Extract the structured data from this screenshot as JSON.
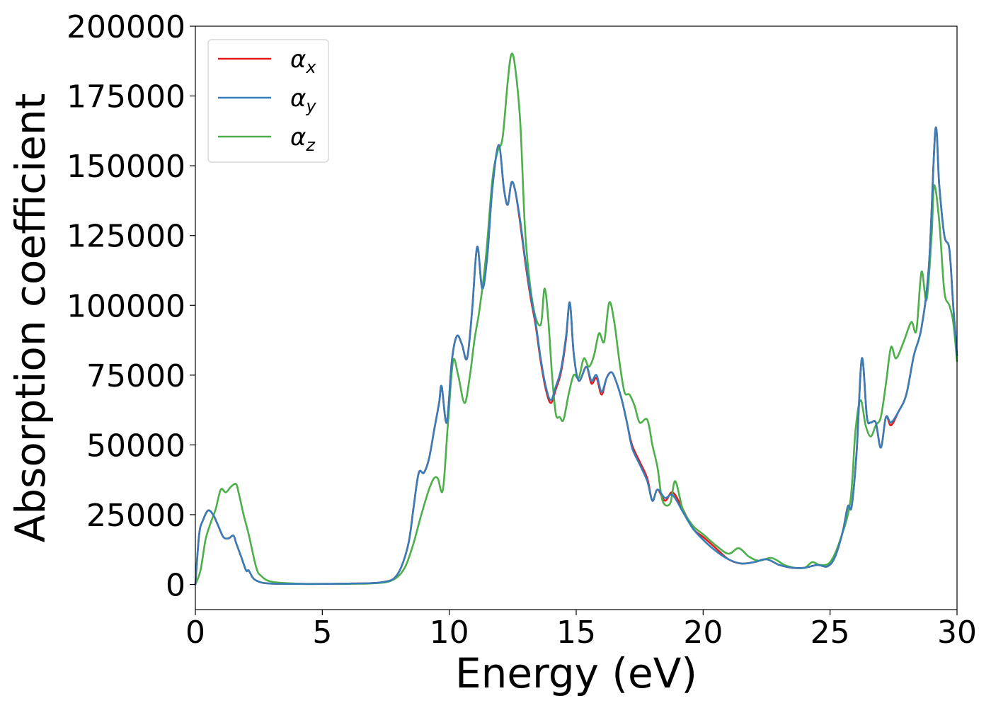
{
  "chart_data": {
    "type": "line",
    "title": "",
    "xlabel": "Energy (eV)",
    "ylabel": "Absorption coefficient",
    "xlim": [
      0,
      30
    ],
    "ylim": [
      -9000,
      200000
    ],
    "x_ticks": [
      0,
      5,
      10,
      15,
      20,
      25,
      30
    ],
    "y_ticks": [
      0,
      25000,
      50000,
      75000,
      100000,
      125000,
      150000,
      175000,
      200000
    ],
    "grid": false,
    "legend_position": "upper-left",
    "series": [
      {
        "name": "α",
        "subscript": "x",
        "color": "#e41a1c",
        "x": [
          0,
          0.15,
          0.3,
          0.5,
          0.7,
          0.9,
          1.1,
          1.3,
          1.5,
          1.6,
          1.8,
          2.0,
          2.1,
          2.3,
          2.6,
          3.0,
          4.0,
          5.0,
          6.0,
          7.0,
          7.4,
          7.8,
          8.1,
          8.4,
          8.6,
          8.8,
          9.0,
          9.2,
          9.4,
          9.6,
          9.7,
          9.9,
          10.1,
          10.3,
          10.5,
          10.7,
          10.9,
          11.1,
          11.3,
          11.5,
          11.7,
          11.95,
          12.15,
          12.3,
          12.45,
          12.6,
          12.8,
          13.0,
          13.2,
          13.4,
          13.6,
          13.8,
          14.0,
          14.2,
          14.4,
          14.6,
          14.75,
          14.9,
          15.1,
          15.4,
          15.6,
          15.8,
          16.0,
          16.2,
          16.4,
          16.6,
          16.8,
          17.0,
          17.2,
          17.5,
          17.8,
          18.0,
          18.2,
          18.5,
          18.8,
          19.2,
          19.6,
          20.0,
          20.5,
          21.0,
          21.5,
          22.0,
          22.5,
          23.0,
          23.5,
          24.0,
          24.5,
          24.9,
          25.2,
          25.5,
          25.7,
          25.85,
          26.05,
          26.25,
          26.45,
          26.6,
          26.8,
          27.0,
          27.2,
          27.4,
          27.7,
          28.0,
          28.3,
          28.6,
          28.9,
          29.15,
          29.3,
          29.5,
          29.7,
          29.85,
          30.0
        ],
        "y": [
          0,
          18000,
          23000,
          26500,
          25000,
          21000,
          17000,
          16500,
          17500,
          15000,
          10000,
          5000,
          5000,
          2000,
          700,
          300,
          200,
          200,
          300,
          500,
          900,
          2000,
          6000,
          15000,
          28000,
          40000,
          40000,
          45000,
          55000,
          65000,
          71000,
          58000,
          80000,
          89000,
          86000,
          81000,
          98000,
          121000,
          106000,
          118000,
          142000,
          157000,
          142000,
          136000,
          144000,
          141000,
          129000,
          115000,
          103000,
          93000,
          80000,
          70000,
          65000,
          70000,
          76000,
          88000,
          101000,
          83000,
          73000,
          78000,
          72000,
          74000,
          68000,
          74000,
          76000,
          72000,
          66000,
          58000,
          50000,
          44000,
          38000,
          30000,
          34000,
          30000,
          33000,
          27000,
          20000,
          17000,
          13000,
          9000,
          7500,
          8000,
          9000,
          7000,
          6000,
          6000,
          7000,
          6500,
          10000,
          19000,
          28000,
          28000,
          48000,
          81000,
          60000,
          58000,
          58000,
          49000,
          60000,
          57000,
          62000,
          68000,
          82000,
          92000,
          115000,
          163000,
          143000,
          125000,
          120000,
          100000,
          82000
        ]
      },
      {
        "name": "α",
        "subscript": "y",
        "color": "#377eb8",
        "x": [
          0,
          0.15,
          0.3,
          0.5,
          0.7,
          0.9,
          1.1,
          1.3,
          1.5,
          1.6,
          1.8,
          2.0,
          2.1,
          2.3,
          2.6,
          3.0,
          4.0,
          5.0,
          6.0,
          7.0,
          7.4,
          7.8,
          8.1,
          8.4,
          8.6,
          8.8,
          9.0,
          9.2,
          9.4,
          9.6,
          9.7,
          9.9,
          10.1,
          10.3,
          10.5,
          10.7,
          10.9,
          11.1,
          11.3,
          11.5,
          11.7,
          11.95,
          12.15,
          12.3,
          12.45,
          12.6,
          12.8,
          13.0,
          13.2,
          13.4,
          13.6,
          13.8,
          14.0,
          14.2,
          14.4,
          14.6,
          14.75,
          14.9,
          15.1,
          15.4,
          15.6,
          15.8,
          16.0,
          16.2,
          16.4,
          16.6,
          16.8,
          17.0,
          17.2,
          17.5,
          17.8,
          18.0,
          18.2,
          18.5,
          18.8,
          19.2,
          19.6,
          20.0,
          20.5,
          21.0,
          21.5,
          22.0,
          22.5,
          23.0,
          23.5,
          24.0,
          24.5,
          24.9,
          25.2,
          25.5,
          25.7,
          25.85,
          26.05,
          26.25,
          26.45,
          26.6,
          26.8,
          27.0,
          27.2,
          27.4,
          27.7,
          28.0,
          28.3,
          28.6,
          28.9,
          29.15,
          29.3,
          29.5,
          29.7,
          29.85,
          30.0
        ],
        "y": [
          0,
          18000,
          23000,
          26500,
          25000,
          21000,
          17000,
          16500,
          17500,
          15000,
          10000,
          5000,
          5000,
          2000,
          700,
          300,
          200,
          200,
          300,
          500,
          900,
          2000,
          6000,
          15000,
          28000,
          40000,
          40000,
          45000,
          55000,
          65000,
          71000,
          58000,
          80000,
          89000,
          86000,
          81000,
          98000,
          121000,
          106000,
          118000,
          142000,
          157500,
          142000,
          136000,
          144000,
          141000,
          130000,
          116000,
          104000,
          94000,
          81000,
          71000,
          66000,
          71000,
          77000,
          89000,
          101000,
          83000,
          73000,
          78000,
          73000,
          75000,
          69000,
          74000,
          76000,
          72000,
          66000,
          58000,
          49000,
          43000,
          37000,
          30000,
          34000,
          31000,
          32000,
          26000,
          20000,
          16000,
          12000,
          9000,
          7500,
          8000,
          9000,
          7000,
          6000,
          6000,
          7000,
          6500,
          10000,
          19000,
          28000,
          28000,
          48000,
          81000,
          60000,
          58000,
          58000,
          49000,
          60000,
          58000,
          62000,
          68000,
          82000,
          92000,
          115000,
          163000,
          143000,
          125000,
          120000,
          100000,
          82000
        ]
      },
      {
        "name": "α",
        "subscript": "z",
        "color": "#4daf4a",
        "x": [
          0,
          0.2,
          0.4,
          0.6,
          0.8,
          1.0,
          1.2,
          1.4,
          1.6,
          1.7,
          1.9,
          2.1,
          2.4,
          2.6,
          3.0,
          4.0,
          5.0,
          6.0,
          7.0,
          7.6,
          8.0,
          8.3,
          8.6,
          8.9,
          9.2,
          9.4,
          9.55,
          9.75,
          9.95,
          10.15,
          10.35,
          10.6,
          10.8,
          11.0,
          11.2,
          11.45,
          11.7,
          11.9,
          12.1,
          12.3,
          12.45,
          12.6,
          12.8,
          13.0,
          13.3,
          13.6,
          13.75,
          13.9,
          14.05,
          14.2,
          14.35,
          14.5,
          14.7,
          14.9,
          15.1,
          15.3,
          15.5,
          15.7,
          15.9,
          16.1,
          16.3,
          16.5,
          16.7,
          16.9,
          17.1,
          17.3,
          17.5,
          17.8,
          18.0,
          18.2,
          18.4,
          18.7,
          18.9,
          19.2,
          19.6,
          20.0,
          20.5,
          21.0,
          21.4,
          21.8,
          22.2,
          22.7,
          23.2,
          23.6,
          24.0,
          24.3,
          24.6,
          25.0,
          25.4,
          25.8,
          26.0,
          26.2,
          26.4,
          26.6,
          26.8,
          27.0,
          27.2,
          27.4,
          27.6,
          27.9,
          28.2,
          28.4,
          28.6,
          28.8,
          29.0,
          29.1,
          29.3,
          29.5,
          29.7,
          29.85,
          30.0
        ],
        "y": [
          0,
          5000,
          16000,
          22000,
          27000,
          34000,
          33000,
          35000,
          36000,
          33000,
          25000,
          18000,
          6000,
          3000,
          1000,
          300,
          200,
          200,
          400,
          1000,
          3000,
          7000,
          15000,
          25000,
          34000,
          38000,
          38000,
          34000,
          58000,
          80000,
          75000,
          65000,
          74000,
          88000,
          99000,
          118000,
          145000,
          155000,
          160000,
          180000,
          190000,
          185000,
          165000,
          125000,
          100000,
          93000,
          106000,
          95000,
          75000,
          61000,
          60000,
          59000,
          68000,
          75000,
          74000,
          81000,
          78000,
          82000,
          90000,
          87000,
          101000,
          94000,
          80000,
          69000,
          68000,
          64000,
          58000,
          59000,
          50000,
          42000,
          30000,
          29000,
          37000,
          27000,
          21000,
          18000,
          14000,
          11000,
          13000,
          10000,
          8500,
          9500,
          7000,
          6000,
          6000,
          8000,
          7000,
          8000,
          16000,
          30000,
          55000,
          66000,
          57000,
          53000,
          57000,
          60000,
          72000,
          85000,
          81000,
          87000,
          94000,
          91000,
          112000,
          102000,
          125000,
          143000,
          130000,
          105000,
          100000,
          94000,
          80000
        ]
      }
    ]
  }
}
